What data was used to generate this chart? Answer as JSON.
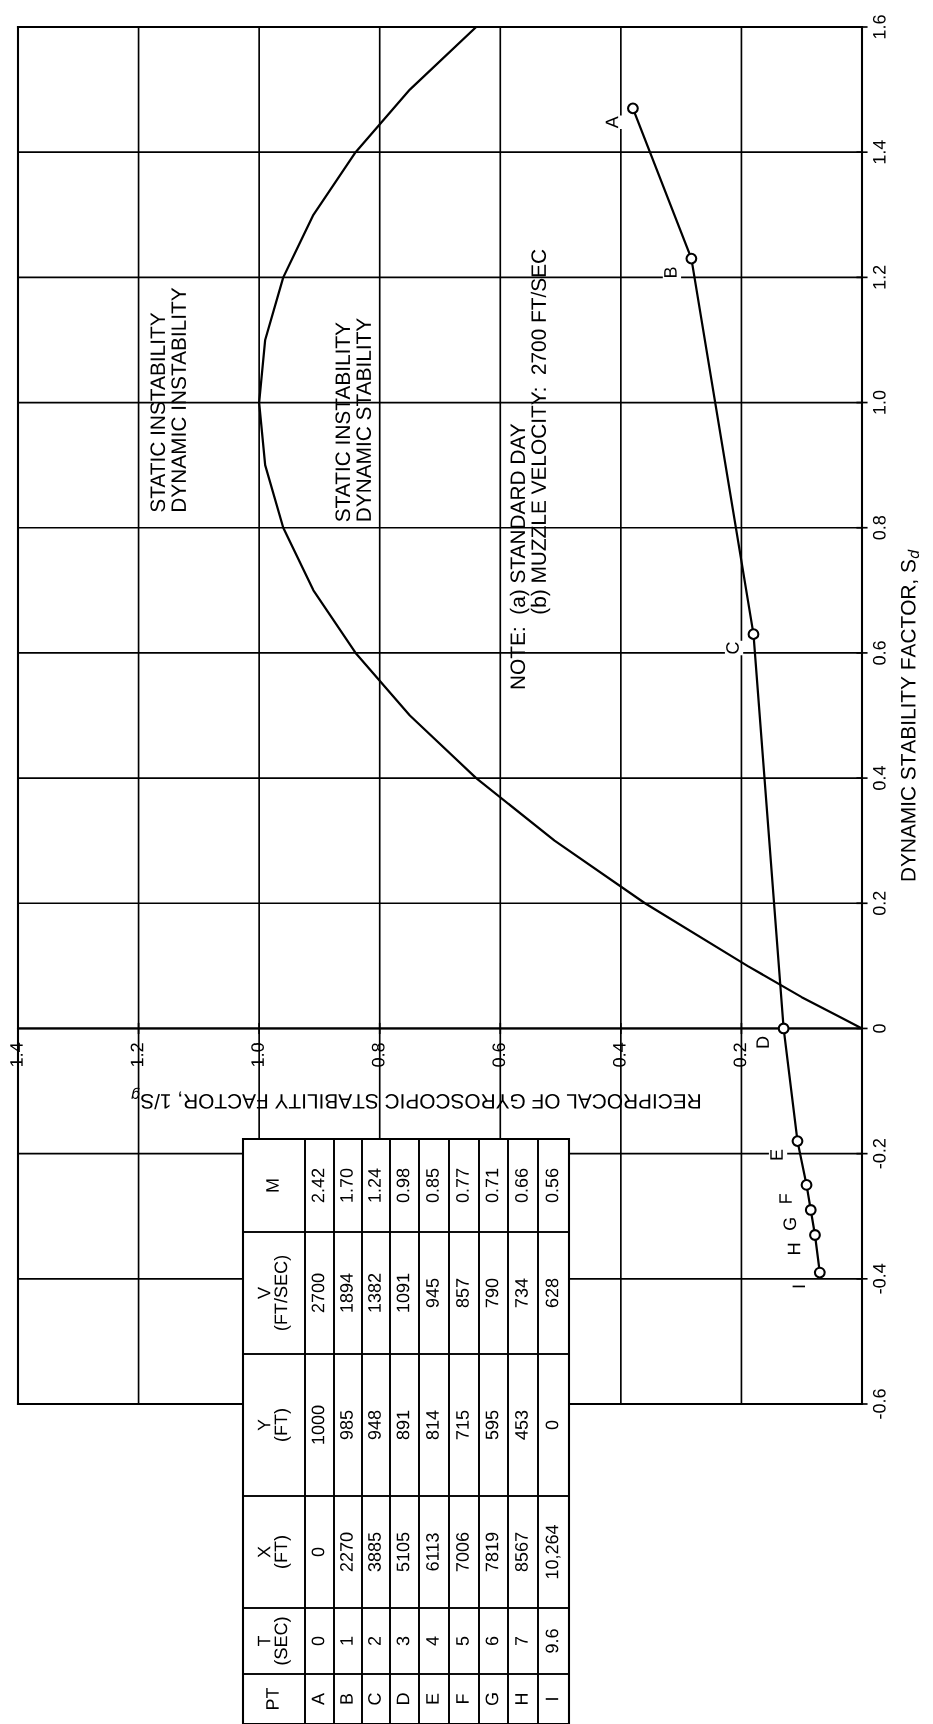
{
  "chart_data": {
    "type": "line",
    "xlabel": "RECIPROCAL OF GYROSCOPIC STABILITY FACTOR, 1/S$_{g}$",
    "ylabel": "DYNAMIC STABILITY FACTOR, S$_{d}$",
    "xlim": [
      1.4,
      0
    ],
    "xticks": [
      1.4,
      1.2,
      {
        "value": 1.0,
        "label": "1.0"
      },
      0.8,
      0.6,
      0.4,
      0.2
    ],
    "ylim": [
      -0.6,
      1.6
    ],
    "yticks": [
      -0.6,
      -0.4,
      -0.2,
      0,
      0.2,
      0.4,
      0.6,
      0.8,
      {
        "value": 1.0,
        "label": "1.0"
      },
      1.2,
      1.4,
      1.6
    ],
    "grid": true,
    "series": [
      {
        "color": "#000000",
        "marker": "none",
        "x": [
          0,
          0.1,
          0.19,
          0.36,
          0.51,
          0.64,
          0.75,
          0.84,
          0.91,
          0.96,
          0.99,
          1.0,
          0.99,
          0.96,
          0.91,
          0.84,
          0.75,
          0.64
        ],
        "values": [
          0,
          0.05,
          0.1,
          0.2,
          0.3,
          0.4,
          0.5,
          0.6,
          0.7,
          0.8,
          0.9,
          1.0,
          1.1,
          1.2,
          1.3,
          1.4,
          1.5,
          1.6
        ]
      },
      {
        "color": "#000000",
        "marker": "circle",
        "x": [
          0.38,
          0.283,
          0.18,
          0.13,
          0.107,
          0.092,
          0.085,
          0.078,
          0.07
        ],
        "values": [
          1.47,
          1.23,
          0.63,
          0,
          -0.18,
          -0.25,
          -0.29,
          -0.33,
          -0.39
        ]
      }
    ],
    "annotations": [
      "STATIC INSTABILITY\nDYNAMIC INSTABILITY",
      "STATIC INSTABILITY\nDYNAMIC STABILITY",
      "NOTE:  (a) STANDARD DAY\n             (b) MUZZLE VELOCITY:  2700 FT/SEC",
      {
        "text": "A",
        "x": 0.38,
        "y": 1.47
      },
      {
        "text": "B",
        "x": 0.283,
        "y": 1.23
      },
      {
        "text": "C",
        "x": 0.18,
        "y": 0.63
      },
      {
        "text": "D",
        "x": 0.13,
        "y": 0
      },
      {
        "text": "E",
        "x": 0.107,
        "y": -0.18
      },
      {
        "text": "F",
        "x": 0.092,
        "y": -0.25
      },
      {
        "text": "G",
        "x": 0.085,
        "y": -0.29
      },
      {
        "text": "H",
        "x": 0.078,
        "y": -0.33
      },
      {
        "text": "I",
        "x": 0.07,
        "y": -0.39
      },
      "PT",
      "T\n(SEC)",
      "X\n(FT)",
      "Y\n(FT)",
      "V\n(FT/SEC)",
      "M",
      "A",
      "0",
      "0",
      "1000",
      "2700",
      "2.42",
      "B",
      "1",
      "2270",
      "985",
      "1894",
      "1.70",
      "C",
      "2",
      "3885",
      "948",
      "1382",
      "1.24",
      "D",
      "3",
      "5105",
      "891",
      "1091",
      "0.98",
      "E",
      "4",
      "6113",
      "814",
      "945",
      "0.85",
      "F",
      "5",
      "7006",
      "715",
      "857",
      "0.77",
      "G",
      "6",
      "7819",
      "595",
      "790",
      "0.71",
      "H",
      "7",
      "8567",
      "453",
      "734",
      "0.66",
      "I",
      "9.6",
      "10,264",
      "0",
      "628",
      "0.56"
    ]
  }
}
